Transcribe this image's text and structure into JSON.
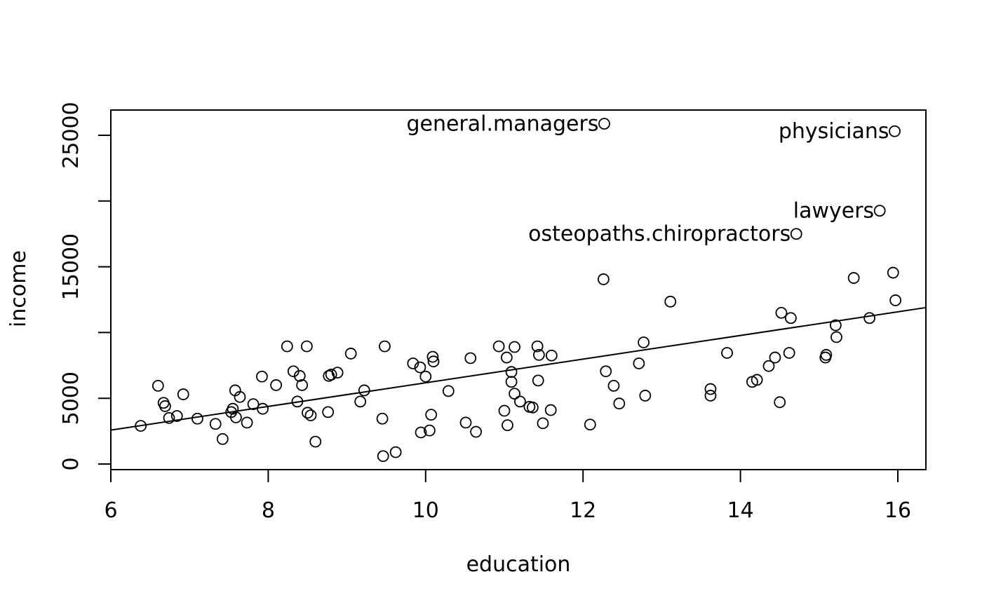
{
  "chart_data": {
    "type": "scatter",
    "title": "",
    "xlabel": "education",
    "ylabel": "income",
    "xlim": [
      6,
      16.35
    ],
    "ylim": [
      -400,
      27000
    ],
    "x_ticks": [
      6,
      8,
      10,
      12,
      14,
      16
    ],
    "y_ticks": [
      0,
      5000,
      10000,
      15000,
      20000,
      25000
    ],
    "x_tick_labels": [
      "6",
      "8",
      "10",
      "12",
      "14",
      "16"
    ],
    "y_tick_labels": [
      "0",
      "5000",
      "15000",
      "25000"
    ],
    "y_labeled_ticks": [
      0,
      5000,
      15000,
      25000
    ],
    "grid": false,
    "regression_line": {
      "x": [
        6,
        16.35
      ],
      "y": [
        2580,
        11890
      ]
    },
    "labeled_points": [
      {
        "label": "general.managers",
        "x": 12.27,
        "y": 25879
      },
      {
        "label": "physicians",
        "x": 15.96,
        "y": 25308
      },
      {
        "label": "lawyers",
        "x": 15.77,
        "y": 19263
      },
      {
        "label": "osteopaths.chiropractors",
        "x": 14.71,
        "y": 17498
      }
    ],
    "points": [
      [
        6.38,
        2900
      ],
      [
        6.6,
        5950
      ],
      [
        6.67,
        4650
      ],
      [
        6.69,
        4400
      ],
      [
        6.74,
        3500
      ],
      [
        6.84,
        3650
      ],
      [
        6.92,
        5300
      ],
      [
        7.1,
        3450
      ],
      [
        7.33,
        3050
      ],
      [
        7.42,
        1900
      ],
      [
        7.53,
        3950
      ],
      [
        7.55,
        4200
      ],
      [
        7.58,
        5600
      ],
      [
        7.59,
        3550
      ],
      [
        7.64,
        5100
      ],
      [
        7.73,
        3150
      ],
      [
        7.81,
        4550
      ],
      [
        7.92,
        6650
      ],
      [
        7.93,
        4200
      ],
      [
        8.1,
        6000
      ],
      [
        8.24,
        8950
      ],
      [
        8.32,
        7050
      ],
      [
        8.37,
        4750
      ],
      [
        8.4,
        6700
      ],
      [
        8.43,
        6000
      ],
      [
        8.49,
        8950
      ],
      [
        8.5,
        3900
      ],
      [
        8.54,
        3700
      ],
      [
        8.6,
        1700
      ],
      [
        8.76,
        3950
      ],
      [
        8.77,
        6700
      ],
      [
        8.8,
        6800
      ],
      [
        8.88,
        6950
      ],
      [
        9.05,
        8400
      ],
      [
        9.17,
        4750
      ],
      [
        9.22,
        5600
      ],
      [
        9.45,
        3450
      ],
      [
        9.46,
        600
      ],
      [
        9.48,
        8950
      ],
      [
        9.62,
        900
      ],
      [
        9.84,
        7650
      ],
      [
        9.93,
        7350
      ],
      [
        9.94,
        2400
      ],
      [
        10.0,
        6650
      ],
      [
        10.05,
        2550
      ],
      [
        10.07,
        3750
      ],
      [
        10.09,
        8150
      ],
      [
        10.1,
        7800
      ],
      [
        10.29,
        5550
      ],
      [
        10.51,
        3150
      ],
      [
        10.57,
        8050
      ],
      [
        10.64,
        2450
      ],
      [
        10.93,
        8950
      ],
      [
        11.0,
        4050
      ],
      [
        11.03,
        8100
      ],
      [
        11.04,
        2950
      ],
      [
        11.09,
        6250
      ],
      [
        11.09,
        7000
      ],
      [
        11.13,
        5350
      ],
      [
        11.13,
        8900
      ],
      [
        11.2,
        4750
      ],
      [
        11.32,
        4350
      ],
      [
        11.36,
        4300
      ],
      [
        11.42,
        8950
      ],
      [
        11.43,
        6350
      ],
      [
        11.44,
        8300
      ],
      [
        11.49,
        3100
      ],
      [
        11.59,
        4100
      ],
      [
        11.6,
        8250
      ],
      [
        12.09,
        3000
      ],
      [
        12.26,
        14050
      ],
      [
        12.29,
        7050
      ],
      [
        12.39,
        5950
      ],
      [
        12.46,
        4600
      ],
      [
        12.71,
        7650
      ],
      [
        12.77,
        9250
      ],
      [
        12.79,
        5200
      ],
      [
        13.11,
        12350
      ],
      [
        13.62,
        5700
      ],
      [
        13.62,
        5200
      ],
      [
        13.83,
        8450
      ],
      [
        14.15,
        6250
      ],
      [
        14.21,
        6400
      ],
      [
        14.36,
        7450
      ],
      [
        14.44,
        8100
      ],
      [
        14.5,
        4700
      ],
      [
        14.52,
        11500
      ],
      [
        14.62,
        8450
      ],
      [
        14.64,
        11100
      ],
      [
        15.08,
        8100
      ],
      [
        15.09,
        8300
      ],
      [
        15.21,
        10550
      ],
      [
        15.22,
        9650
      ],
      [
        15.44,
        14150
      ],
      [
        15.64,
        11100
      ],
      [
        15.94,
        14550
      ],
      [
        15.97,
        12450
      ]
    ],
    "marker": "open-circle",
    "colors": {
      "points": "#000000",
      "line": "#000000",
      "frame": "#000000"
    }
  }
}
